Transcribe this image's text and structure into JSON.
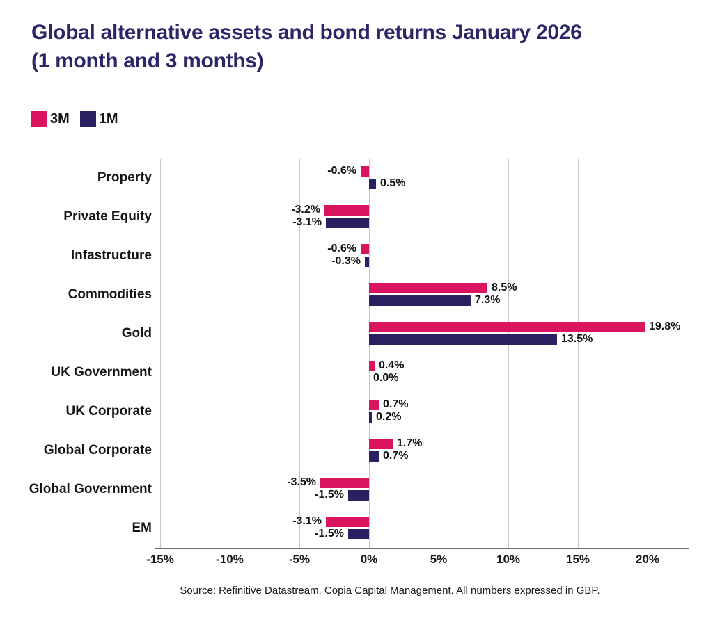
{
  "title": {
    "line1": "Global alternative assets and bond returns January 2026",
    "line2": "(1 month and 3 months)"
  },
  "legend": {
    "items": [
      {
        "label": "3M",
        "color": "#DB145F"
      },
      {
        "label": "1M",
        "color": "#2A2163"
      }
    ]
  },
  "chart_data": {
    "type": "bar",
    "orientation": "horizontal",
    "title": "Global alternative assets and bond returns January 2026 (1 month and 3 months)",
    "unit": "%",
    "categories": [
      "Property",
      "Private Equity",
      "Infastructure",
      "Commodities",
      "Gold",
      "UK Government",
      "UK Corporate",
      "Global Corporate",
      "Global Government",
      "EM"
    ],
    "series": [
      {
        "name": "3M",
        "color": "#DB145F",
        "values": [
          -0.6,
          -3.2,
          -0.6,
          8.5,
          19.8,
          0.4,
          0.7,
          1.7,
          -3.5,
          -3.1
        ],
        "labels": [
          "-0.6%",
          "-3.2%",
          "-0.6%",
          "8.5%",
          "19.8%",
          "0.4%",
          "0.7%",
          "1.7%",
          "-3.5%",
          "-3.1%"
        ]
      },
      {
        "name": "1M",
        "color": "#2A2163",
        "values": [
          0.5,
          -3.1,
          -0.3,
          7.3,
          13.5,
          0.0,
          0.2,
          0.7,
          -1.5,
          -1.5
        ],
        "labels": [
          "0.5%",
          "-3.1%",
          "-0.3%",
          "7.3%",
          "13.5%",
          "0.0%",
          "0.2%",
          "0.7%",
          "-1.5%",
          "-1.5%"
        ]
      }
    ],
    "x_ticks": [
      {
        "label": "-15%",
        "value": -15
      },
      {
        "label": "-10%",
        "value": -10
      },
      {
        "label": "-5%",
        "value": -5
      },
      {
        "label": "0%",
        "value": 0
      },
      {
        "label": "5%",
        "value": 5
      },
      {
        "label": "10%",
        "value": 10
      },
      {
        "label": "15%",
        "value": 15
      },
      {
        "label": "20%",
        "value": 20
      }
    ],
    "xlim": [
      -15,
      22.6
    ],
    "grid": "vertical",
    "legend_position": "top-left"
  },
  "source": "Source: Refinitive Datastream, Copia Capital Management. All numbers expressed in GBP.",
  "colors": {
    "title": "#2B2668",
    "grid": "#C7C7C7",
    "axis_line": "#6A6A6A",
    "text": "#161616",
    "background": "#FFFFFF"
  }
}
